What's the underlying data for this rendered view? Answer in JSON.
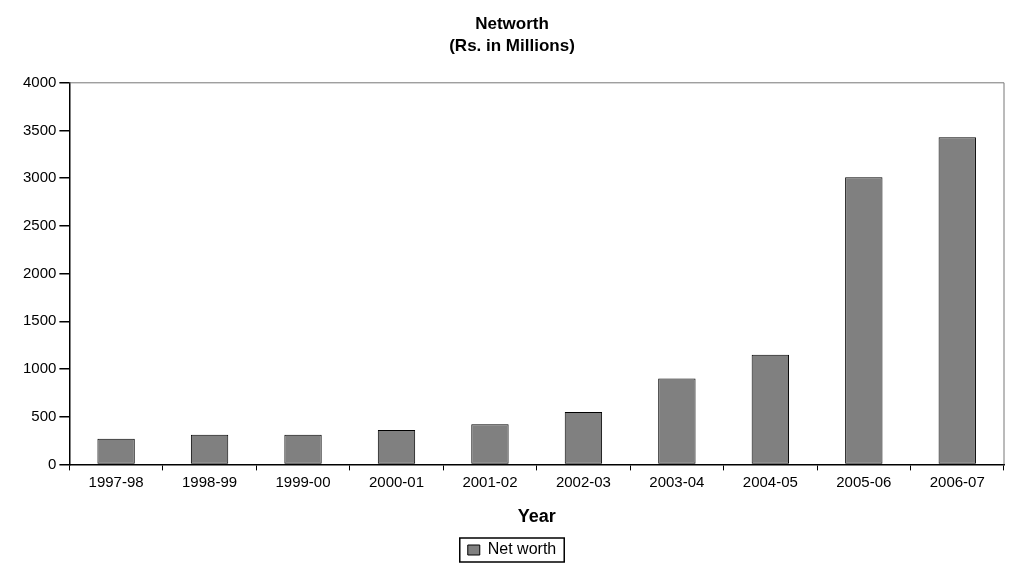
{
  "chart_data": {
    "type": "bar",
    "title": "Networth",
    "subtitle": "(Rs. in Millions)",
    "xlabel": "Year",
    "categories": [
      "1997-98",
      "1998-99",
      "1999-00",
      "2000-01",
      "2001-02",
      "2002-03",
      "2003-04",
      "2004-05",
      "2005-06",
      "2006-07"
    ],
    "series": [
      {
        "name": "Net worth",
        "color": "#808080",
        "values": [
          270,
          310,
          310,
          360,
          420,
          550,
          900,
          1150,
          3010,
          3430
        ]
      }
    ],
    "ylim": [
      0,
      4000
    ],
    "yticks": [
      0,
      500,
      1000,
      1500,
      2000,
      2500,
      3000,
      3500,
      4000
    ],
    "grid": false,
    "legend": "bottom"
  }
}
